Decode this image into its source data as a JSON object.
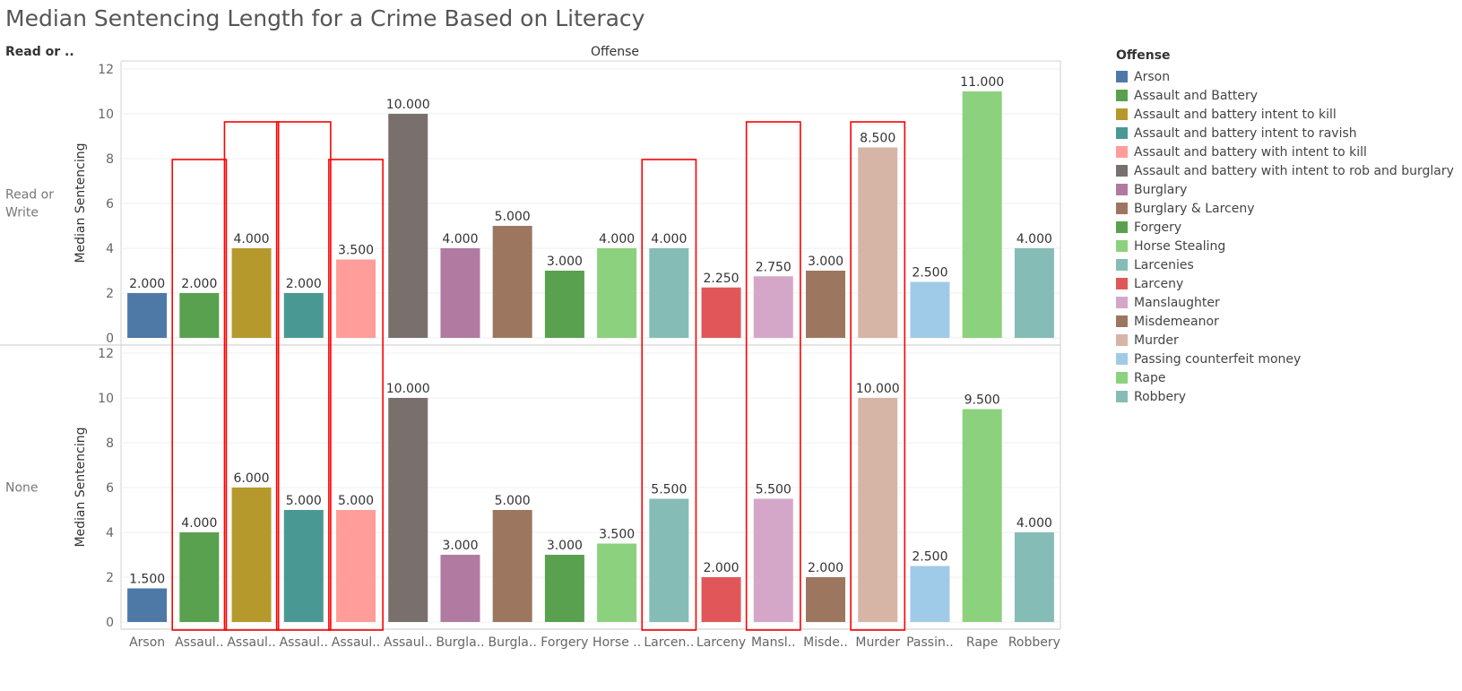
{
  "title": "Median Sentencing Length for a Crime Based on Literacy",
  "header": {
    "row_field": "Read or ..",
    "column_field": "Offense"
  },
  "legend": {
    "title": "Offense",
    "items": [
      {
        "label": "Arson",
        "color": "#4e79a7"
      },
      {
        "label": "Assault and Battery",
        "color": "#59a14f"
      },
      {
        "label": "Assault and battery intent to kill",
        "color": "#b6992d"
      },
      {
        "label": "Assault and battery intent to ravish",
        "color": "#499894"
      },
      {
        "label": "Assault and battery with intent to kill",
        "color": "#ff9d9a"
      },
      {
        "label": "Assault and battery with intent to rob and burglary",
        "color": "#79706e"
      },
      {
        "label": "Burglary",
        "color": "#b07aa1"
      },
      {
        "label": "Burglary & Larceny",
        "color": "#9d7660"
      },
      {
        "label": "Forgery",
        "color": "#59a14f"
      },
      {
        "label": "Horse Stealing",
        "color": "#8cd17d"
      },
      {
        "label": "Larcenies",
        "color": "#86bcb6"
      },
      {
        "label": "Larceny",
        "color": "#e15759"
      },
      {
        "label": "Manslaughter",
        "color": "#d4a6c8"
      },
      {
        "label": "Misdemeanor",
        "color": "#9d7660"
      },
      {
        "label": "Murder",
        "color": "#d7b5a6"
      },
      {
        "label": "Passing counterfeit money",
        "color": "#a0cbe8"
      },
      {
        "label": "Rape",
        "color": "#8cd17d"
      },
      {
        "label": "Robbery",
        "color": "#86bcb6"
      }
    ]
  },
  "chart_data": {
    "type": "bar",
    "title": "Median Sentencing Length for a Crime Based on Literacy",
    "ylabel": "Median Sentencing",
    "ylim": [
      0,
      12
    ],
    "yticks": [
      0,
      2,
      4,
      6,
      8,
      10,
      12
    ],
    "grid": true,
    "legend_position": "right",
    "categories": [
      "Arson",
      "Assaul..",
      "Assaul..",
      "Assaul..",
      "Assaul..",
      "Assaul..",
      "Burgla..",
      "Burgla..",
      "Forgery",
      "Horse ..",
      "Larcen..",
      "Larceny",
      "Mansl..",
      "Misde..",
      "Murder",
      "Passin..",
      "Rape",
      "Robbery"
    ],
    "colors": [
      "#4e79a7",
      "#59a14f",
      "#b6992d",
      "#499894",
      "#ff9d9a",
      "#79706e",
      "#b07aa1",
      "#9d7660",
      "#59a14f",
      "#8cd17d",
      "#86bcb6",
      "#e15759",
      "#d4a6c8",
      "#9d7660",
      "#d7b5a6",
      "#a0cbe8",
      "#8cd17d",
      "#86bcb6"
    ],
    "series": [
      {
        "name": "Read or Write",
        "values": [
          2.0,
          2.0,
          4.0,
          2.0,
          3.5,
          10.0,
          4.0,
          5.0,
          3.0,
          4.0,
          4.0,
          2.25,
          2.75,
          3.0,
          8.5,
          2.5,
          11.0,
          4.0
        ]
      },
      {
        "name": "None",
        "values": [
          1.5,
          4.0,
          6.0,
          5.0,
          5.0,
          10.0,
          3.0,
          5.0,
          3.0,
          3.5,
          5.5,
          2.0,
          5.5,
          2.0,
          10.0,
          2.5,
          9.5,
          4.0
        ]
      }
    ],
    "value_labels": [
      [
        "2.000",
        "2.000",
        "4.000",
        "2.000",
        "3.500",
        "10.000",
        "4.000",
        "5.000",
        "3.000",
        "4.000",
        "4.000",
        "2.250",
        "2.750",
        "3.000",
        "8.500",
        "2.500",
        "11.000",
        "4.000"
      ],
      [
        "1.500",
        "4.000",
        "6.000",
        "5.000",
        "5.000",
        "10.000",
        "3.000",
        "5.000",
        "3.000",
        "3.500",
        "5.500",
        "2.000",
        "5.500",
        "2.000",
        "10.000",
        "2.500",
        "9.500",
        "4.000"
      ]
    ],
    "highlighted_categories": [
      1,
      2,
      3,
      4,
      10,
      12,
      14
    ],
    "highlight_color": "#ff0000"
  }
}
